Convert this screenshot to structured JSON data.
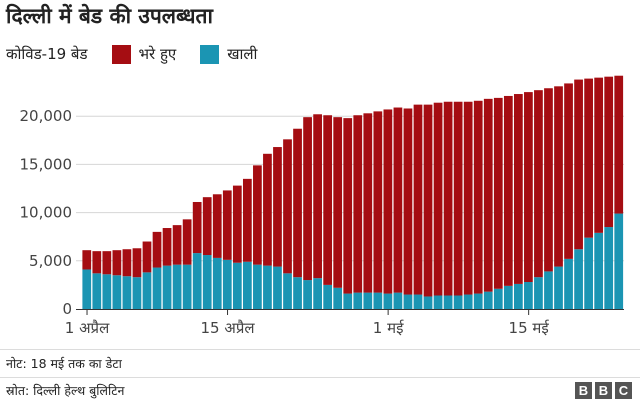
{
  "title": "दिल्ली में बेड की उपलब्धता",
  "legend": {
    "label": "कोविड-19 बेड",
    "items": [
      {
        "name": "भरे हुए",
        "color": "#a50d12"
      },
      {
        "name": "खाली",
        "color": "#1b95b3"
      }
    ]
  },
  "footer": {
    "note": "नोट: 18 मई तक का डेटा",
    "source": "स्रोत: दिल्ली हेल्थ बुलिटिन",
    "logo": [
      "B",
      "B",
      "C"
    ]
  },
  "chart_data": {
    "type": "bar",
    "stacked": true,
    "x_ticks": [
      {
        "day": 1,
        "label": "1 अप्रैल"
      },
      {
        "day": 15,
        "label": "15 अप्रैल"
      },
      {
        "day": 31,
        "label": "1 मई"
      },
      {
        "day": 45,
        "label": "15 मई"
      }
    ],
    "ylim": [
      0,
      25000
    ],
    "yticks": [
      "0",
      "5,000",
      "10,000",
      "15,000",
      "20,000"
    ],
    "ytick_values": [
      0,
      5000,
      10000,
      15000,
      20000
    ],
    "grid": true,
    "series": [
      {
        "name": "खाली",
        "color": "#1b95b3",
        "values": [
          4100,
          3700,
          3600,
          3500,
          3400,
          3300,
          3800,
          4300,
          4500,
          4600,
          4600,
          5800,
          5600,
          5300,
          5100,
          4800,
          4900,
          4600,
          4500,
          4400,
          3700,
          3300,
          3000,
          3200,
          2500,
          2200,
          1600,
          1700,
          1700,
          1700,
          1600,
          1700,
          1500,
          1500,
          1300,
          1400,
          1400,
          1400,
          1500,
          1600,
          1800,
          2100,
          2400,
          2600,
          2800,
          3300,
          3900,
          4400,
          5200,
          6200,
          7400,
          7900,
          8500,
          9900
        ]
      },
      {
        "name": "भरे हुए",
        "color": "#a50d12",
        "values": [
          2000,
          2300,
          2400,
          2600,
          2800,
          3000,
          3200,
          3700,
          3900,
          4100,
          4700,
          5300,
          6000,
          6600,
          7200,
          8000,
          8600,
          10300,
          11600,
          12400,
          13900,
          15400,
          16900,
          17000,
          17600,
          17700,
          18200,
          18400,
          18600,
          18800,
          19100,
          19200,
          19300,
          19700,
          19900,
          20000,
          20100,
          20100,
          20000,
          20000,
          20000,
          19800,
          19700,
          19700,
          19700,
          19400,
          19000,
          18700,
          18200,
          17600,
          16500,
          16100,
          15600,
          14300
        ]
      }
    ]
  }
}
